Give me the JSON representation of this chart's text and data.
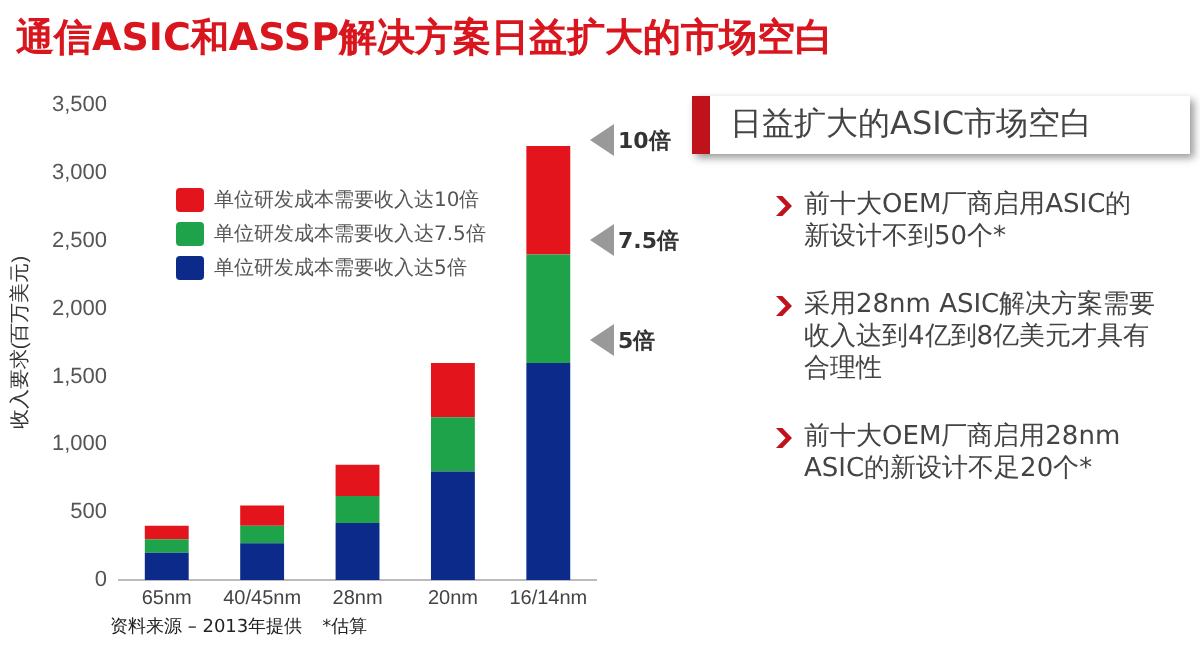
{
  "chart_data": [
    {
      "type": "bar",
      "title": "通信ASIC和ASSP解决方案日益扩大的市场空白",
      "ylabel": "收入要求(百万美元)",
      "categories": [
        "65nm",
        "40/45nm",
        "28nm",
        "20nm",
        "16/14nm"
      ],
      "series": [
        {
          "name": "单位研发成本需要收入达5倍",
          "color": "#0c2a8a",
          "values": [
            200,
            270,
            420,
            800,
            1600
          ]
        },
        {
          "name": "单位研发成本需要收入达7.5倍",
          "color": "#1fa34a",
          "values": [
            100,
            130,
            200,
            400,
            800
          ]
        },
        {
          "name": "单位研发成本需要收入达10倍",
          "color": "#e3141b",
          "values": [
            100,
            150,
            230,
            400,
            800
          ]
        }
      ],
      "stacked": true,
      "ylim": [
        0,
        3500
      ],
      "yticks": [
        0,
        {
          "value": 500,
          "label": "500"
        },
        {
          "value": 1000,
          "label": "1,000"
        },
        {
          "value": 1500,
          "label": "1,500"
        },
        {
          "value": 2000,
          "label": "2,000"
        },
        {
          "value": 2500,
          "label": "2,500"
        },
        {
          "value": 3000,
          "label": "3,000"
        },
        {
          "value": 3500,
          "label": "3,500"
        }
      ],
      "grid": false,
      "legend": "top left",
      "annotations": [
        "10倍",
        "7.5倍",
        "5倍",
        "资料来源 – 2013年提供",
        "*估算"
      ]
    },
    {
      "type": "other",
      "title": "日益扩大的ASIC市场空白",
      "annotations": [
        "前十大OEM厂商启用ASIC的新设计不到50个*",
        "采用28nm ASIC解决方案需要收入达到4亿到8亿美元才具有合理性",
        "前十大OEM厂商启用28nm ASIC的新设计不足20个*"
      ]
    }
  ]
}
